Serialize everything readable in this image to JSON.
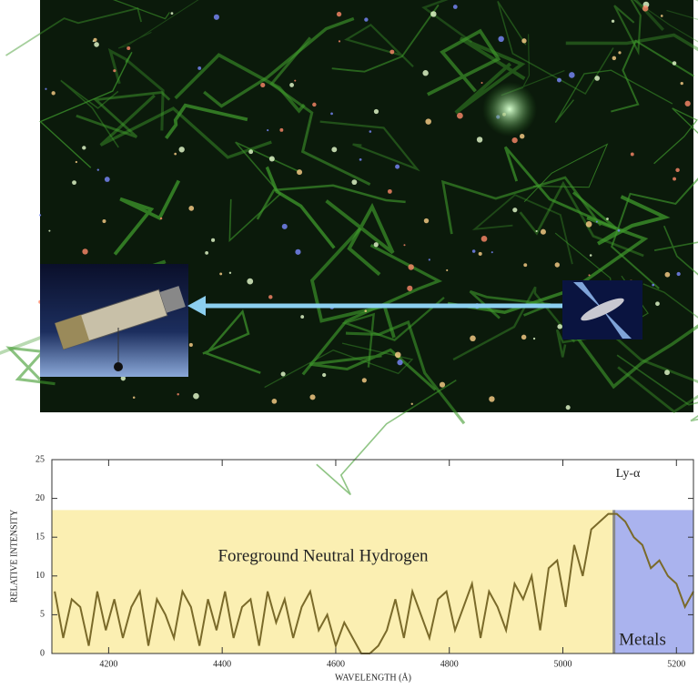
{
  "chart_data": {
    "type": "line",
    "y_label": "RELATIVE INTENSITY",
    "x_label": "WAVELENGTH (Å)",
    "annotations": [
      "Ly-α",
      "Foreground Neutral Hydrogen",
      "Metals"
    ],
    "shaded_regions": [
      {
        "name": "Foreground Neutral Hydrogen",
        "color": "#fbefb2",
        "x": [
          4100,
          5090
        ],
        "top": 18.5
      },
      {
        "name": "Metals",
        "color": "#aab3ee",
        "x": [
          5090,
          5230
        ],
        "top": 18.5
      }
    ],
    "x": [
      4105,
      4120,
      4135,
      4150,
      4165,
      4180,
      4195,
      4210,
      4225,
      4240,
      4255,
      4270,
      4285,
      4300,
      4315,
      4330,
      4345,
      4360,
      4375,
      4390,
      4405,
      4420,
      4435,
      4450,
      4465,
      4480,
      4495,
      4510,
      4525,
      4540,
      4555,
      4570,
      4585,
      4600,
      4615,
      4630,
      4645,
      4660,
      4675,
      4690,
      4705,
      4720,
      4735,
      4750,
      4765,
      4780,
      4795,
      4810,
      4825,
      4840,
      4855,
      4870,
      4885,
      4900,
      4915,
      4930,
      4945,
      4960,
      4975,
      4990,
      5005,
      5020,
      5035,
      5050,
      5065,
      5080,
      5095,
      5110,
      5125,
      5140,
      5155,
      5170,
      5185,
      5200,
      5215,
      5230
    ],
    "values": [
      8,
      2,
      7,
      6,
      1,
      8,
      3,
      7,
      2,
      6,
      8,
      1,
      7,
      5,
      2,
      8,
      6,
      1,
      7,
      3,
      8,
      2,
      6,
      7,
      1,
      8,
      4,
      7,
      2,
      6,
      8,
      3,
      5,
      1,
      4,
      2,
      0,
      0,
      1,
      3,
      7,
      2,
      8,
      5,
      2,
      7,
      8,
      3,
      6,
      9,
      2,
      8,
      6,
      3,
      9,
      7,
      10,
      3,
      11,
      12,
      6,
      14,
      10,
      16,
      17,
      18,
      18,
      17,
      15,
      14,
      11,
      12,
      10,
      9,
      6,
      8
    ],
    "color": "#7a6a2a",
    "xlim": [
      4100,
      5230
    ],
    "xticks": [
      4200,
      4400,
      4600,
      4800,
      5000,
      5200
    ],
    "ylim": [
      0,
      25
    ],
    "yticks": [
      0,
      5,
      10,
      15,
      20,
      25
    ]
  }
}
